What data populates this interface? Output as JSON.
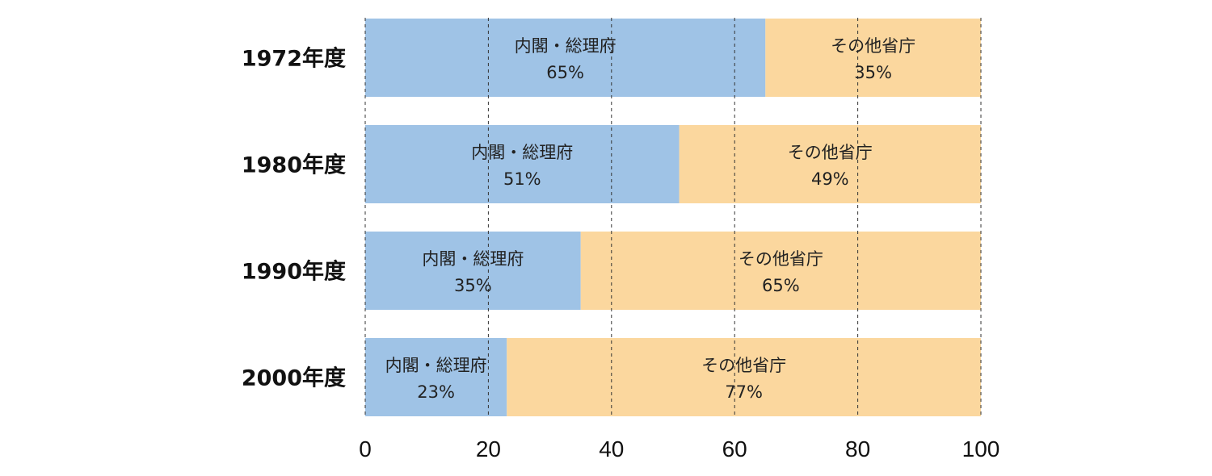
{
  "chart_data": {
    "type": "bar",
    "orientation": "horizontal",
    "stacked": true,
    "categories": [
      "1972年度",
      "1980年度",
      "1990年度",
      "2000年度"
    ],
    "series": [
      {
        "name": "内閣・総理府",
        "values": [
          65,
          51,
          35,
          23
        ],
        "value_labels": [
          "65%",
          "51%",
          "35%",
          "23%"
        ],
        "color": "#9fc3e6"
      },
      {
        "name": "その他省庁",
        "values": [
          35,
          49,
          65,
          77
        ],
        "value_labels": [
          "35%",
          "49%",
          "65%",
          "77%"
        ],
        "color": "#fbd79e"
      }
    ],
    "xlim": [
      0,
      100
    ],
    "xticks": [
      0,
      20,
      40,
      60,
      80,
      100
    ],
    "xtick_labels": [
      "0",
      "20",
      "40",
      "60",
      "80",
      "100"
    ],
    "grid": "vertical dashed",
    "title": "",
    "xlabel": "",
    "ylabel": ""
  }
}
